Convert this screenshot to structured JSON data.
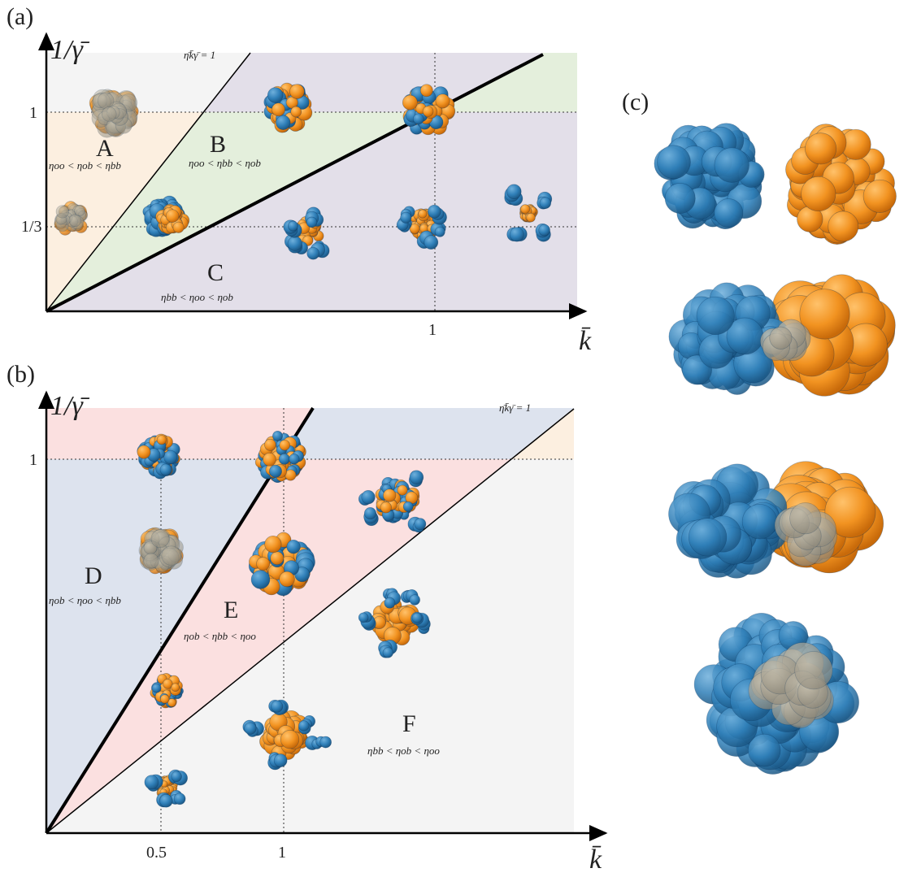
{
  "panel_a": {
    "label": "(a)",
    "y_axis_label": "1/γ̄",
    "x_axis_label": "k̄",
    "y_ticks": [
      "1",
      "1/3"
    ],
    "x_ticks": [
      "1"
    ],
    "line_label": "η̄k̄γ̄ = 1",
    "regions": [
      {
        "name": "A",
        "condition": "ηoo < ηob < ηbb"
      },
      {
        "name": "B",
        "condition": "ηoo < ηbb < ηob"
      },
      {
        "name": "C",
        "condition": "ηbb < ηoo < ηob"
      }
    ]
  },
  "panel_b": {
    "label": "(b)",
    "y_axis_label": "1/γ̄",
    "x_axis_label": "k̄",
    "y_ticks": [
      "1"
    ],
    "x_ticks": [
      "0.5",
      "1"
    ],
    "line_label": "η̄k̄γ̄ = 1",
    "regions": [
      {
        "name": "D",
        "condition": "ηob < ηoo < ηbb"
      },
      {
        "name": "E",
        "condition": "ηob < ηbb < ηoo"
      },
      {
        "name": "F",
        "condition": "ηbb < ηob < ηoo"
      }
    ]
  },
  "panel_c": {
    "label": "(c)"
  }
}
